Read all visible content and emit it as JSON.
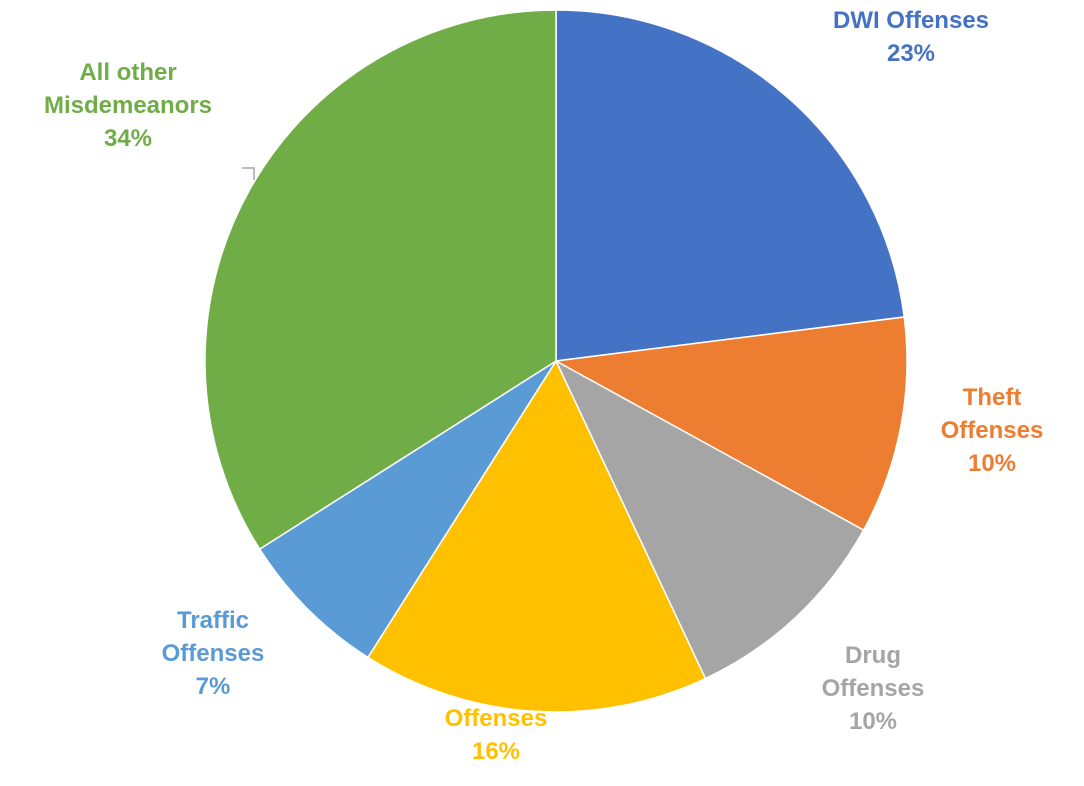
{
  "chart_data": {
    "type": "pie",
    "title": "",
    "slices": [
      {
        "name_lines": [
          "DWI Offenses"
        ],
        "pct_label": "23%",
        "value": 23,
        "color": "#4472C4"
      },
      {
        "name_lines": [
          "Theft",
          "Offenses"
        ],
        "pct_label": "10%",
        "value": 10,
        "color": "#ED7D31"
      },
      {
        "name_lines": [
          "Drug",
          "Offenses"
        ],
        "pct_label": "10%",
        "value": 10,
        "color": "#A5A5A5"
      },
      {
        "name_lines": [
          "Offenses"
        ],
        "pct_label": "16%",
        "value": 16,
        "color": "#FFC000"
      },
      {
        "name_lines": [
          "Traffic",
          "Offenses"
        ],
        "pct_label": "7%",
        "value": 7,
        "color": "#5B9BD5"
      },
      {
        "name_lines": [
          "All other",
          "Misdemeanors"
        ],
        "pct_label": "34%",
        "value": 34,
        "color": "#70AD47"
      }
    ]
  }
}
